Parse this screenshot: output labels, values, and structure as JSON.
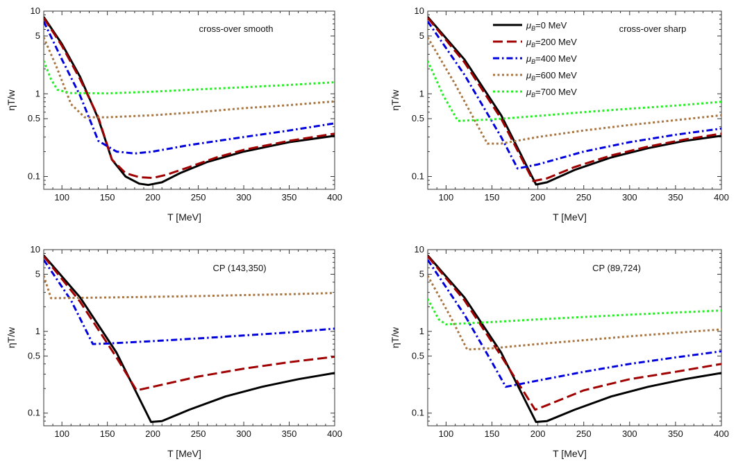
{
  "legend": {
    "mu_symbol": "μ",
    "mu_sub": "B",
    "entries": [
      {
        "suffix": "=0 MeV",
        "color": "#000000",
        "dash": "solid"
      },
      {
        "suffix": "=200 MeV",
        "color": "#a00000",
        "dash": "longdash"
      },
      {
        "suffix": "=400 MeV",
        "color": "#0000dd",
        "dash": "dashdot"
      },
      {
        "suffix": "=600 MeV",
        "color": "#a87540",
        "dash": "dot"
      },
      {
        "suffix": "=700 MeV",
        "color": "#22ee22",
        "dash": "dot"
      }
    ]
  },
  "chart_data": [
    {
      "type": "line",
      "annotation": "cross-over smooth",
      "xlabel": "T [MeV]",
      "ylabel": "ηT/w",
      "xlim": [
        80,
        400
      ],
      "ylim": [
        0.07,
        10
      ],
      "yscale": "log",
      "xticks": [
        100,
        150,
        200,
        250,
        300,
        350,
        400
      ],
      "yticks": [
        {
          "v": 0.1,
          "label": "0.1"
        },
        {
          "v": 0.5,
          "label": "0.5"
        },
        {
          "v": 1,
          "label": "1"
        },
        {
          "v": 5,
          "label": "5"
        },
        {
          "v": 10,
          "label": "10"
        }
      ],
      "series": [
        {
          "name": "μB=0 MeV",
          "x": [
            80,
            100,
            120,
            140,
            155,
            170,
            185,
            195,
            210,
            230,
            260,
            300,
            350,
            400
          ],
          "y": [
            8.5,
            4.0,
            1.6,
            0.5,
            0.16,
            0.1,
            0.082,
            0.079,
            0.085,
            0.11,
            0.15,
            0.2,
            0.26,
            0.31
          ]
        },
        {
          "name": "μB=200 MeV",
          "x": [
            80,
            100,
            120,
            140,
            155,
            170,
            185,
            200,
            215,
            240,
            270,
            300,
            350,
            400
          ],
          "y": [
            8.3,
            3.8,
            1.5,
            0.52,
            0.16,
            0.11,
            0.098,
            0.096,
            0.105,
            0.13,
            0.17,
            0.21,
            0.27,
            0.33
          ]
        },
        {
          "name": "μB=400 MeV",
          "x": [
            80,
            100,
            120,
            140,
            160,
            180,
            200,
            240,
            300,
            350,
            400
          ],
          "y": [
            7.5,
            2.6,
            0.95,
            0.27,
            0.2,
            0.19,
            0.2,
            0.24,
            0.3,
            0.36,
            0.44
          ]
        },
        {
          "name": "μB=600 MeV",
          "x": [
            80,
            95,
            110,
            125,
            150,
            200,
            250,
            300,
            350,
            400
          ],
          "y": [
            4.8,
            2.0,
            0.75,
            0.52,
            0.52,
            0.55,
            0.6,
            0.67,
            0.73,
            0.81
          ]
        },
        {
          "name": "μB=700 MeV",
          "x": [
            80,
            88,
            95,
            110,
            150,
            200,
            250,
            300,
            350,
            400
          ],
          "y": [
            2.5,
            1.5,
            1.12,
            1.02,
            1.01,
            1.06,
            1.13,
            1.2,
            1.28,
            1.38
          ]
        }
      ]
    },
    {
      "type": "line",
      "annotation": "cross-over sharp",
      "xlabel": "T [MeV]",
      "ylabel": "ηT/w",
      "xlim": [
        80,
        400
      ],
      "ylim": [
        0.07,
        10
      ],
      "yscale": "log",
      "xticks": [
        100,
        150,
        200,
        250,
        300,
        350,
        400
      ],
      "yticks": [
        {
          "v": 0.1,
          "label": "0.1"
        },
        {
          "v": 0.5,
          "label": "0.5"
        },
        {
          "v": 1,
          "label": "1"
        },
        {
          "v": 5,
          "label": "5"
        },
        {
          "v": 10,
          "label": "10"
        }
      ],
      "series": [
        {
          "name": "μB=0 MeV",
          "x": [
            80,
            120,
            160,
            198,
            210,
            240,
            280,
            320,
            360,
            400
          ],
          "y": [
            8.5,
            2.6,
            0.55,
            0.08,
            0.085,
            0.12,
            0.17,
            0.22,
            0.27,
            0.31
          ]
        },
        {
          "name": "μB=200 MeV",
          "x": [
            80,
            120,
            160,
            195,
            210,
            240,
            280,
            320,
            360,
            400
          ],
          "y": [
            8.3,
            2.4,
            0.5,
            0.088,
            0.095,
            0.13,
            0.18,
            0.23,
            0.28,
            0.33
          ]
        },
        {
          "name": "μB=400 MeV",
          "x": [
            80,
            120,
            160,
            178,
            200,
            250,
            300,
            350,
            400
          ],
          "y": [
            7.5,
            1.7,
            0.3,
            0.125,
            0.14,
            0.2,
            0.26,
            0.32,
            0.38
          ]
        },
        {
          "name": "μB=600 MeV",
          "x": [
            80,
            110,
            145,
            160,
            200,
            250,
            300,
            350,
            400
          ],
          "y": [
            4.8,
            1.3,
            0.25,
            0.25,
            0.3,
            0.36,
            0.42,
            0.48,
            0.55
          ]
        },
        {
          "name": "μB=700 MeV",
          "x": [
            80,
            97,
            113,
            150,
            200,
            250,
            300,
            350,
            400
          ],
          "y": [
            2.5,
            0.95,
            0.47,
            0.49,
            0.54,
            0.6,
            0.66,
            0.72,
            0.8
          ]
        }
      ]
    },
    {
      "type": "line",
      "annotation": "CP (143,350)",
      "xlabel": "T [MeV]",
      "ylabel": "ηT/w",
      "xlim": [
        80,
        400
      ],
      "ylim": [
        0.07,
        10
      ],
      "yscale": "log",
      "xticks": [
        100,
        150,
        200,
        250,
        300,
        350,
        400
      ],
      "yticks": [
        {
          "v": 0.1,
          "label": "0.1"
        },
        {
          "v": 0.5,
          "label": "0.5"
        },
        {
          "v": 1,
          "label": "1"
        },
        {
          "v": 5,
          "label": "5"
        },
        {
          "v": 10,
          "label": "10"
        }
      ],
      "series": [
        {
          "name": "μB=0 MeV",
          "x": [
            80,
            120,
            160,
            198,
            210,
            240,
            280,
            320,
            360,
            400
          ],
          "y": [
            8.5,
            2.6,
            0.55,
            0.078,
            0.08,
            0.11,
            0.16,
            0.21,
            0.26,
            0.31
          ]
        },
        {
          "name": "μB=200 MeV",
          "x": [
            80,
            120,
            160,
            182,
            200,
            250,
            300,
            350,
            400
          ],
          "y": [
            8.3,
            2.3,
            0.48,
            0.19,
            0.21,
            0.28,
            0.35,
            0.42,
            0.49
          ]
        },
        {
          "name": "μB=400 MeV",
          "x": [
            80,
            110,
            134,
            150,
            200,
            250,
            300,
            350,
            400
          ],
          "y": [
            7.5,
            2.4,
            0.7,
            0.71,
            0.76,
            0.82,
            0.89,
            0.97,
            1.08
          ]
        },
        {
          "name": "μB=600 MeV",
          "x": [
            80,
            88,
            150,
            200,
            250,
            300,
            350,
            400
          ],
          "y": [
            4.8,
            2.55,
            2.6,
            2.65,
            2.7,
            2.78,
            2.85,
            2.95
          ]
        }
      ]
    },
    {
      "type": "line",
      "annotation": "CP (89,724)",
      "xlabel": "T [MeV]",
      "ylabel": "ηT/w",
      "xlim": [
        80,
        400
      ],
      "ylim": [
        0.07,
        10
      ],
      "yscale": "log",
      "xticks": [
        100,
        150,
        200,
        250,
        300,
        350,
        400
      ],
      "yticks": [
        {
          "v": 0.1,
          "label": "0.1"
        },
        {
          "v": 0.5,
          "label": "0.5"
        },
        {
          "v": 1,
          "label": "1"
        },
        {
          "v": 5,
          "label": "5"
        },
        {
          "v": 10,
          "label": "10"
        }
      ],
      "series": [
        {
          "name": "μB=0 MeV",
          "x": [
            80,
            120,
            160,
            198,
            210,
            240,
            280,
            320,
            360,
            400
          ],
          "y": [
            8.5,
            2.6,
            0.55,
            0.078,
            0.08,
            0.11,
            0.16,
            0.21,
            0.26,
            0.31
          ]
        },
        {
          "name": "μB=200 MeV",
          "x": [
            80,
            120,
            160,
            197,
            210,
            250,
            300,
            350,
            400
          ],
          "y": [
            8.3,
            2.4,
            0.5,
            0.11,
            0.125,
            0.19,
            0.26,
            0.32,
            0.4
          ]
        },
        {
          "name": "μB=400 MeV",
          "x": [
            80,
            120,
            150,
            165,
            200,
            250,
            300,
            350,
            400
          ],
          "y": [
            7.5,
            1.6,
            0.42,
            0.21,
            0.25,
            0.32,
            0.4,
            0.48,
            0.57
          ]
        },
        {
          "name": "μB=600 MeV",
          "x": [
            80,
            105,
            123,
            150,
            200,
            250,
            300,
            350,
            400
          ],
          "y": [
            4.8,
            1.5,
            0.6,
            0.62,
            0.7,
            0.78,
            0.87,
            0.96,
            1.06
          ]
        },
        {
          "name": "μB=700 MeV",
          "x": [
            80,
            92,
            100,
            150,
            200,
            250,
            300,
            350,
            400
          ],
          "y": [
            2.5,
            1.4,
            1.22,
            1.3,
            1.4,
            1.5,
            1.6,
            1.7,
            1.8
          ]
        }
      ]
    }
  ]
}
